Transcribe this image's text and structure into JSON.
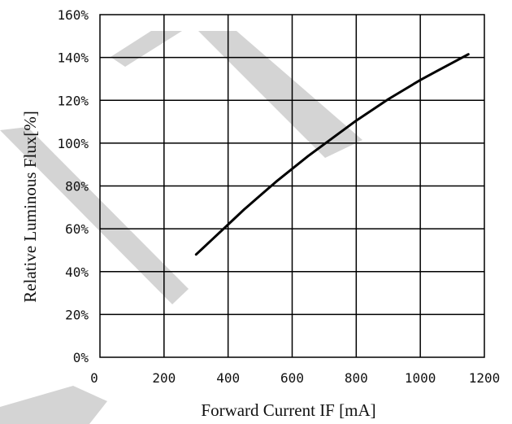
{
  "chart_data": {
    "type": "line",
    "title": "",
    "xlabel": "Forward Current IF [mA]",
    "ylabel": "Relative Luminous Flux[%]",
    "xlim": [
      0,
      1200
    ],
    "ylim": [
      0,
      160
    ],
    "grid": true,
    "x_ticks": [
      {
        "value": 0,
        "label": "0"
      },
      {
        "value": 200,
        "label": "200"
      },
      {
        "value": 400,
        "label": "400"
      },
      {
        "value": 600,
        "label": "600"
      },
      {
        "value": 800,
        "label": "800"
      },
      {
        "value": 1000,
        "label": "1000"
      },
      {
        "value": 1200,
        "label": "1200"
      }
    ],
    "y_ticks": [
      {
        "value": 0,
        "label": "0%"
      },
      {
        "value": 20,
        "label": "20%"
      },
      {
        "value": 40,
        "label": "40%"
      },
      {
        "value": 60,
        "label": "60%"
      },
      {
        "value": 80,
        "label": "80%"
      },
      {
        "value": 100,
        "label": "100%"
      },
      {
        "value": 120,
        "label": "120%"
      },
      {
        "value": 140,
        "label": "140%"
      },
      {
        "value": 160,
        "label": "160%"
      }
    ],
    "series": [
      {
        "x": [
          300,
          350,
          400,
          450,
          500,
          550,
          600,
          650,
          700,
          750,
          800,
          850,
          900,
          950,
          1000,
          1050,
          1100,
          1150
        ],
        "y": [
          48,
          55,
          62,
          69,
          75.5,
          82,
          88,
          94,
          99.5,
          105,
          110.5,
          115.5,
          120.5,
          125,
          129.5,
          133.5,
          137.5,
          141.5
        ]
      }
    ]
  },
  "colors": {
    "series": "#000000",
    "grid": "#000000",
    "watermark": "#c8c8c8"
  }
}
